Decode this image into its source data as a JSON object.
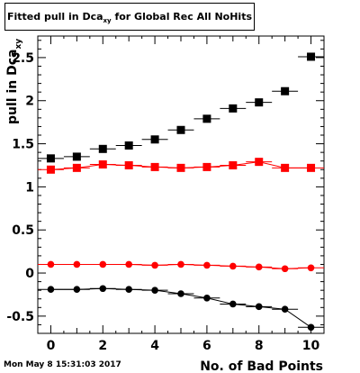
{
  "header": {
    "title_main": "Fitted pull in Dca",
    "title_sub": "xy",
    "title_rest": " for Global Rec All NoHits"
  },
  "footer": {
    "timestamp": "Mon May  8 15:31:03 2017"
  },
  "chart_data": {
    "type": "scatter",
    "xlabel": "No. of Bad Points",
    "ylabel": "pull in Dca",
    "ylabel_sub": "xy",
    "xlim": [
      -0.5,
      10.5
    ],
    "ylim": [
      -0.7,
      2.75
    ],
    "x_ticks": [
      0,
      2,
      4,
      6,
      8,
      10
    ],
    "y_ticks": [
      -0.5,
      0,
      0.5,
      1,
      1.5,
      2,
      2.5
    ],
    "y_tick_labels": [
      "-0.5",
      "0",
      "0.5",
      "1",
      "1.5",
      "2",
      "2.5"
    ],
    "grid": false,
    "series": [
      {
        "color": "#000000",
        "marker": "square",
        "line": false,
        "x": [
          0,
          1,
          2,
          3,
          4,
          5,
          6,
          7,
          8,
          9,
          10
        ],
        "y": [
          1.33,
          1.35,
          1.44,
          1.48,
          1.55,
          1.66,
          1.79,
          1.91,
          1.98,
          2.11,
          2.51
        ]
      },
      {
        "color": "#ff0000",
        "marker": "square",
        "line": true,
        "x": [
          0,
          1,
          2,
          3,
          4,
          5,
          6,
          7,
          8,
          9,
          10
        ],
        "y": [
          1.2,
          1.22,
          1.26,
          1.25,
          1.23,
          1.22,
          1.23,
          1.25,
          1.29,
          1.22,
          1.22
        ]
      },
      {
        "color": "#ff0000",
        "marker": "circle",
        "line": true,
        "x": [
          0,
          1,
          2,
          3,
          4,
          5,
          6,
          7,
          8,
          9,
          10
        ],
        "y": [
          0.1,
          0.1,
          0.1,
          0.1,
          0.09,
          0.1,
          0.09,
          0.08,
          0.07,
          0.05,
          0.06
        ]
      },
      {
        "color": "#000000",
        "marker": "circle",
        "line": true,
        "x": [
          0,
          1,
          2,
          3,
          4,
          5,
          6,
          7,
          8,
          9,
          10
        ],
        "y": [
          -0.19,
          -0.19,
          -0.18,
          -0.19,
          -0.2,
          -0.24,
          -0.29,
          -0.36,
          -0.39,
          -0.42,
          -0.63
        ]
      }
    ]
  }
}
